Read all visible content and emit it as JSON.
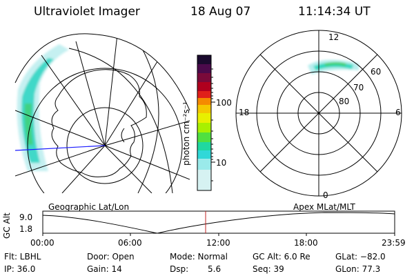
{
  "header": {
    "instrument": "Ultraviolet Imager",
    "date": "18 Aug 07",
    "time": "11:14:34 UT"
  },
  "colorbar": {
    "unit_label": "photon cm⁻²s⁻¹",
    "ticks": [
      "100",
      "10"
    ],
    "colors": [
      "#1a0a2e",
      "#4b0a4b",
      "#7a0a3a",
      "#a0001e",
      "#d0001a",
      "#f04010",
      "#f58a00",
      "#f5c800",
      "#e8f000",
      "#a8f000",
      "#50e040",
      "#20d8a0",
      "#30d8d8",
      "#9aeaea",
      "#d0f0f0"
    ]
  },
  "geographic_map": {
    "label": "Geographic Lat/Lon"
  },
  "polar_plot": {
    "label": "Apex MLat/MLT",
    "mlt_labels": [
      "12",
      "18",
      "6",
      "0"
    ],
    "mlat_labels": [
      "60",
      "70",
      "80"
    ]
  },
  "altitude_plot": {
    "ylabel": "GC Alt",
    "yticks": [
      "9.0",
      "1.8"
    ],
    "xticks": [
      "00:00",
      "06:00",
      "12:00",
      "18:00",
      "23:59"
    ]
  },
  "info": {
    "flt": "Flt: LBHL",
    "ip": "IP: 36.0",
    "door": "Door: Open",
    "gain": "Gain: 14",
    "mode": "Mode: Normal",
    "dsp_label": "Dsp:",
    "dsp_value": "5.6",
    "gcalt": "GC Alt: 6.0 Re",
    "seq": "Seq: 39",
    "glat": "GLat: −82.0",
    "glon": "GLon: 77.3"
  }
}
